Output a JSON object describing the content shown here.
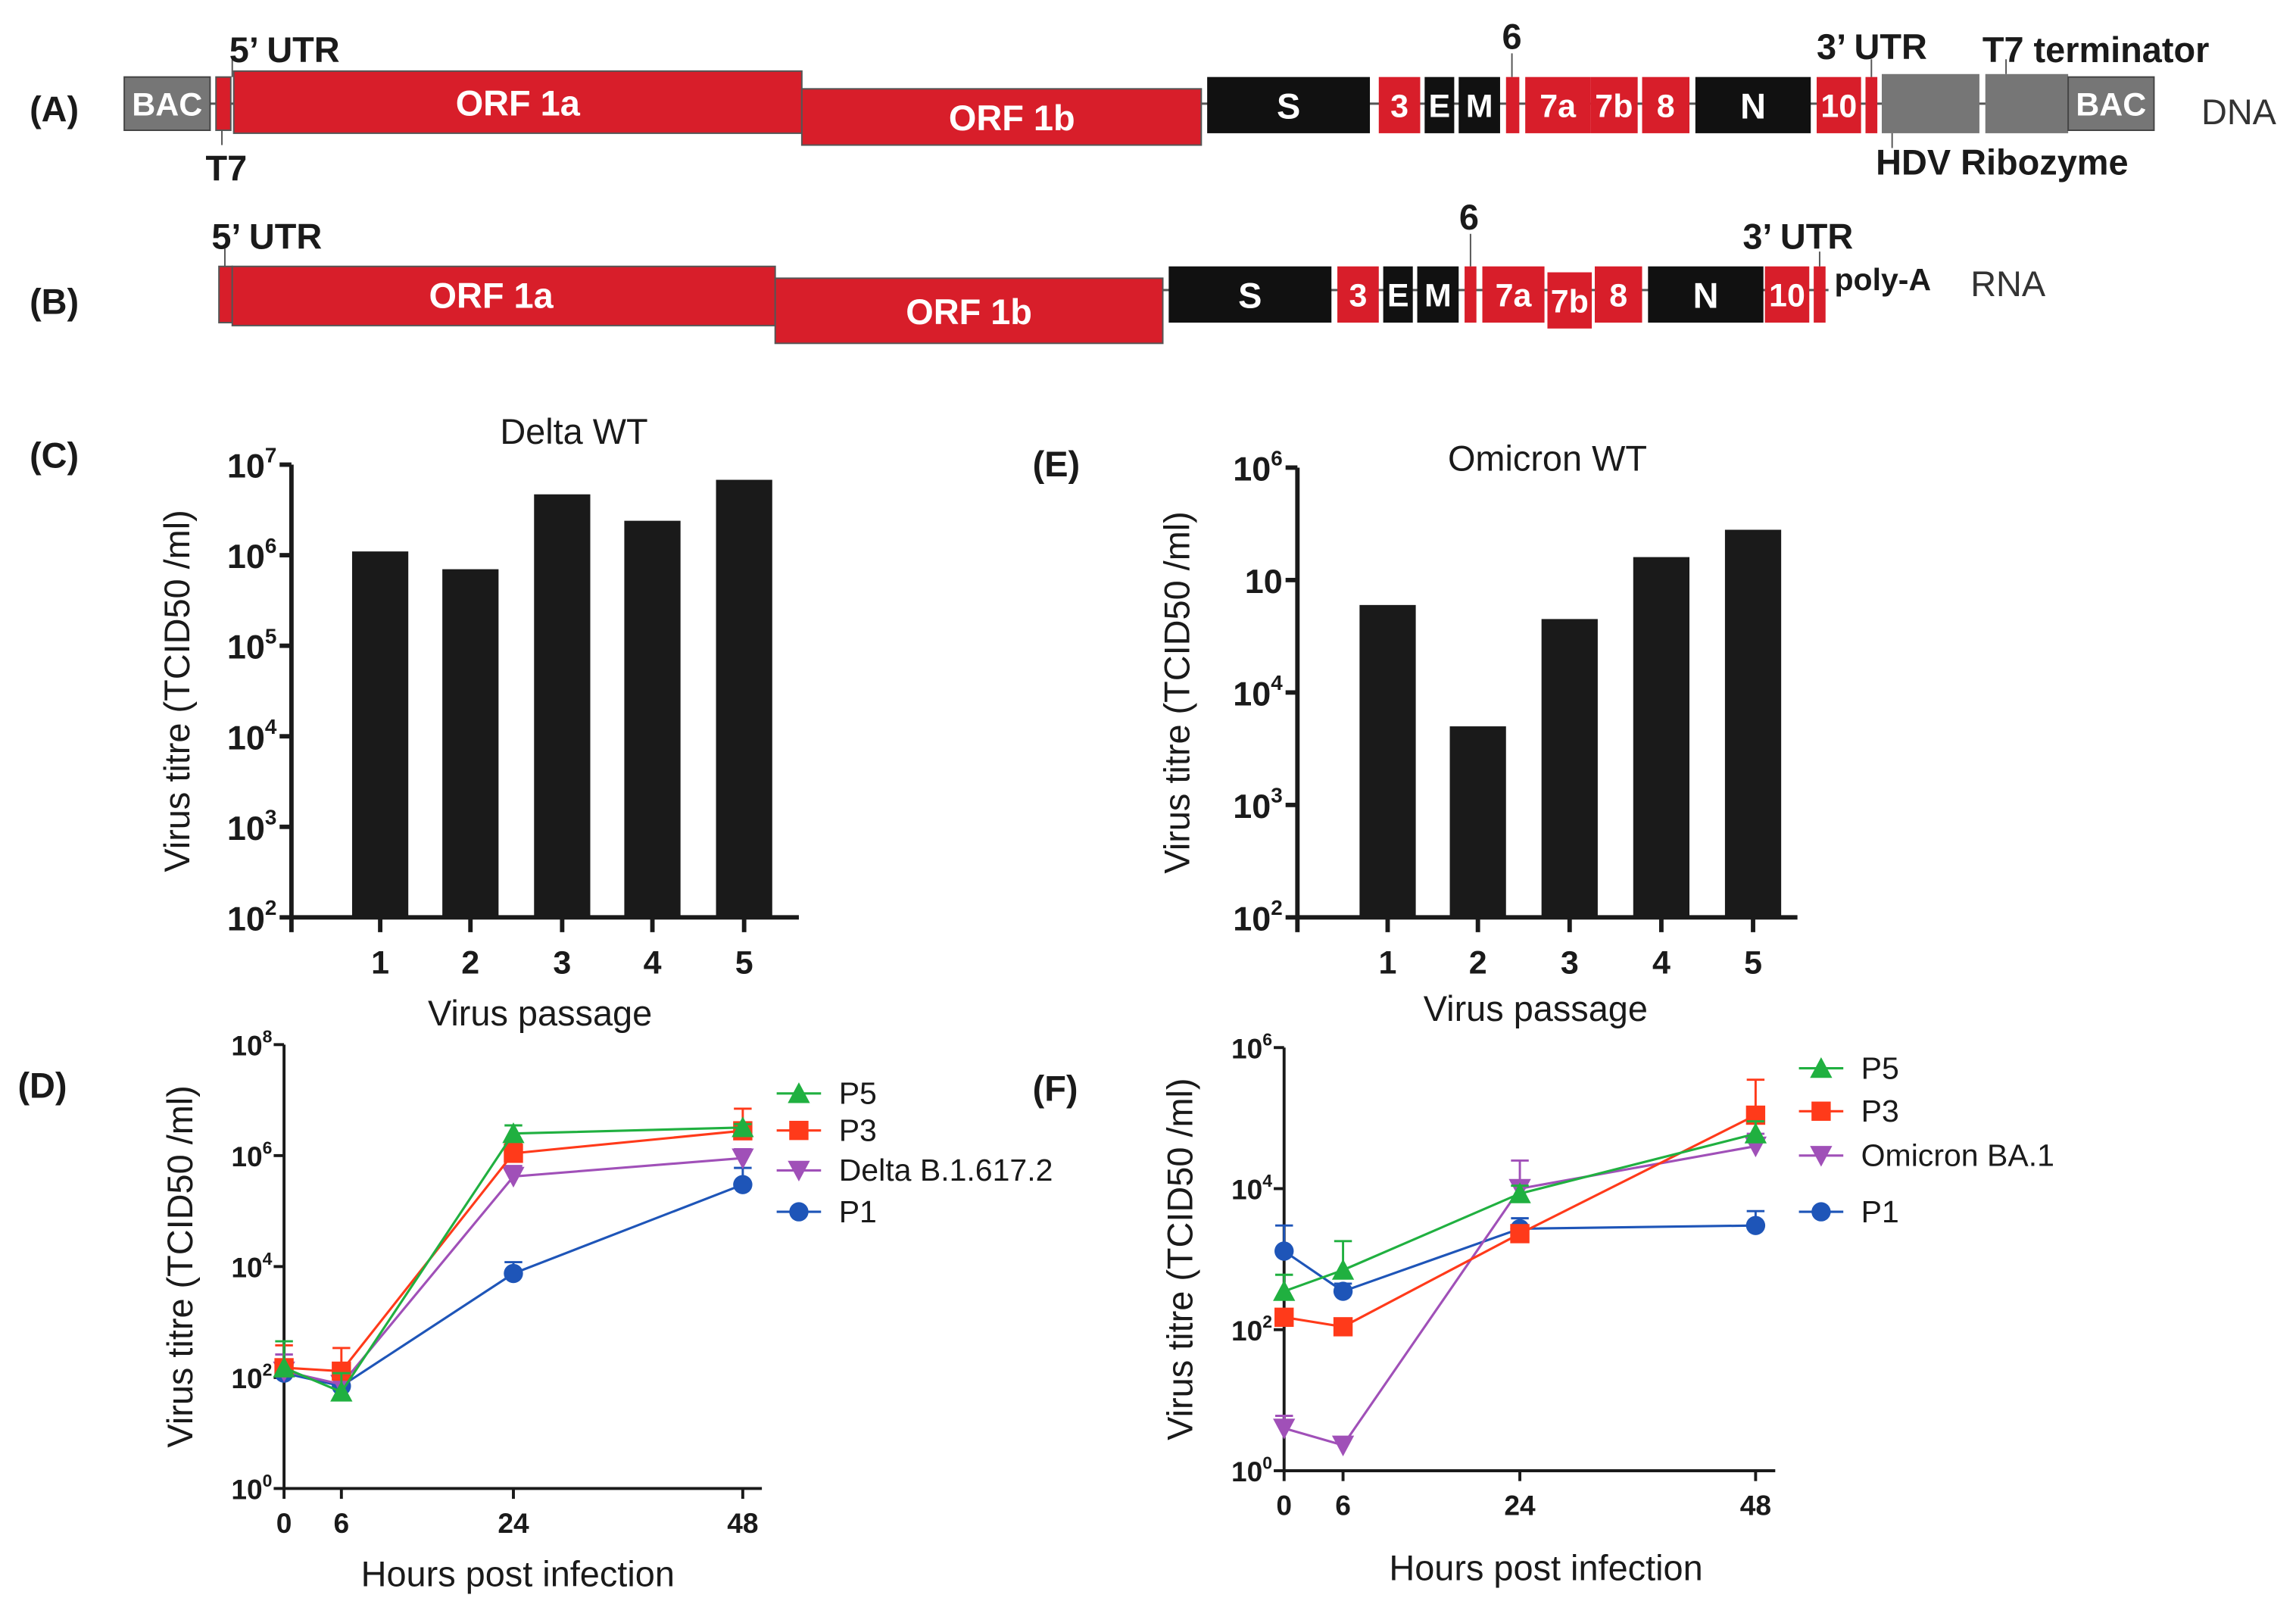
{
  "genome_maps": [
    {
      "panel": "(A)",
      "kind": "DNA",
      "segments": [
        {
          "label": "BAC",
          "color": "gray"
        },
        {
          "label": "",
          "color": "red"
        },
        {
          "label": "ORF 1a",
          "color": "red"
        },
        {
          "label": "ORF 1b",
          "color": "red"
        },
        {
          "label": "S",
          "color": "black"
        },
        {
          "label": "3",
          "color": "red"
        },
        {
          "label": "E",
          "color": "black"
        },
        {
          "label": "M",
          "color": "black"
        },
        {
          "label": "",
          "color": "red"
        },
        {
          "label": "7a",
          "color": "red"
        },
        {
          "label": "7b",
          "color": "red"
        },
        {
          "label": "8",
          "color": "red"
        },
        {
          "label": "N",
          "color": "black"
        },
        {
          "label": "10",
          "color": "red"
        },
        {
          "label": "",
          "color": "red"
        },
        {
          "label": "",
          "color": "gray"
        },
        {
          "label": "",
          "color": "gray"
        },
        {
          "label": "BAC",
          "color": "gray"
        }
      ],
      "annotations": [
        "5’ UTR",
        "T7",
        "6",
        "3’ UTR",
        "T7 terminator",
        "HDV Ribozyme"
      ]
    },
    {
      "panel": "(B)",
      "kind": "RNA",
      "segments": [
        {
          "label": "",
          "color": "red"
        },
        {
          "label": "ORF 1a",
          "color": "red"
        },
        {
          "label": "ORF 1b",
          "color": "red"
        },
        {
          "label": "S",
          "color": "black"
        },
        {
          "label": "3",
          "color": "red"
        },
        {
          "label": "E",
          "color": "black"
        },
        {
          "label": "M",
          "color": "black"
        },
        {
          "label": "",
          "color": "red"
        },
        {
          "label": "7a",
          "color": "red"
        },
        {
          "label": "7b",
          "color": "red"
        },
        {
          "label": "8",
          "color": "red"
        },
        {
          "label": "N",
          "color": "black"
        },
        {
          "label": "10",
          "color": "red"
        },
        {
          "label": "",
          "color": "red"
        }
      ],
      "annotations": [
        "5’ UTR",
        "6",
        "3’ UTR",
        "poly-A"
      ]
    }
  ],
  "chart_data": [
    {
      "panel": "(C)",
      "type": "bar",
      "title": "Delta WT",
      "xlabel": "Virus passage",
      "ylabel": "Virus titre (TCID50 /ml)",
      "yscale": "log",
      "ylim": [
        100,
        10000000
      ],
      "yticks": [
        {
          "value": 100,
          "base": "10",
          "exp": "2"
        },
        {
          "value": 1000,
          "base": "10",
          "exp": "3"
        },
        {
          "value": 10000,
          "base": "10",
          "exp": "4"
        },
        {
          "value": 100000,
          "base": "10",
          "exp": "5"
        },
        {
          "value": 1000000,
          "base": "10",
          "exp": "6"
        },
        {
          "value": 10000000,
          "base": "10",
          "exp": "7"
        }
      ],
      "categories": [
        "1",
        "2",
        "3",
        "4",
        "5"
      ],
      "values": [
        1100000,
        700000,
        4700000,
        2400000,
        6800000
      ],
      "bar_color": "#1a1a1a"
    },
    {
      "panel": "(E)",
      "type": "bar",
      "title": "Omicron WT",
      "xlabel": "Virus passage",
      "ylabel": "Virus titre (TCID50 /ml)",
      "yscale": "log",
      "ylim": [
        100,
        1000000
      ],
      "yticks": [
        {
          "value": 100,
          "base": "10",
          "exp": "2"
        },
        {
          "value": 1000,
          "base": "10",
          "exp": "3"
        },
        {
          "value": 10000,
          "base": "10",
          "exp": "4"
        },
        {
          "value": 100000,
          "base": "10",
          "exp": ""
        },
        {
          "value": 1000000,
          "base": "10",
          "exp": "6"
        }
      ],
      "categories": [
        "1",
        "2",
        "3",
        "4",
        "5"
      ],
      "values": [
        60000,
        5000,
        45000,
        160000,
        280000
      ],
      "bar_color": "#1a1a1a"
    },
    {
      "panel": "(D)",
      "type": "line",
      "xlabel": "Hours post infection",
      "ylabel": "Virus titre (TCID50 /ml)",
      "yscale": "log",
      "ylim": [
        1,
        100000000
      ],
      "xlim": [
        0,
        50
      ],
      "x": [
        0,
        6,
        24,
        48
      ],
      "xticks": [
        "0",
        "6",
        "24",
        "48"
      ],
      "yticks": [
        {
          "value": 1,
          "base": "10",
          "exp": "0"
        },
        {
          "value": 100,
          "base": "10",
          "exp": "2"
        },
        {
          "value": 10000,
          "base": "10",
          "exp": "4"
        },
        {
          "value": 1000000,
          "base": "10",
          "exp": "6"
        },
        {
          "value": 100000000,
          "base": "10",
          "exp": "8"
        }
      ],
      "series": [
        {
          "name": "P5",
          "color": "#20b040",
          "marker": "triangle-up",
          "values": [
            150,
            55,
            2500000,
            3200000
          ],
          "err_upper": [
            450,
            120,
            3500000,
            3700000
          ]
        },
        {
          "name": "P3",
          "color": "#ff3a1a",
          "marker": "square",
          "values": [
            150,
            130,
            1100000,
            2800000
          ],
          "err_upper": [
            380,
            340,
            1700000,
            7000000
          ]
        },
        {
          "name": "Delta B.1.617.2",
          "color": "#a050b8",
          "marker": "triangle-down",
          "values": [
            130,
            75,
            420000,
            900000
          ],
          "err_upper": [
            260,
            170,
            650000,
            1300000
          ]
        },
        {
          "name": "P1",
          "color": "#1e55b8",
          "marker": "circle",
          "values": [
            120,
            70,
            7500,
            300000
          ],
          "err_upper": [
            200,
            110,
            12000,
            600000
          ]
        }
      ]
    },
    {
      "panel": "(F)",
      "type": "line",
      "xlabel": "Hours post infection",
      "ylabel": "Virus titre (TCID50 /ml)",
      "yscale": "log",
      "ylim": [
        1,
        1000000
      ],
      "xlim": [
        0,
        50
      ],
      "x": [
        0,
        6,
        24,
        48
      ],
      "xticks": [
        "0",
        "6",
        "24",
        "48"
      ],
      "yticks": [
        {
          "value": 1,
          "base": "10",
          "exp": "0"
        },
        {
          "value": 100,
          "base": "10",
          "exp": "2"
        },
        {
          "value": 10000,
          "base": "10",
          "exp": "4"
        },
        {
          "value": 1000000,
          "base": "10",
          "exp": "6"
        }
      ],
      "series": [
        {
          "name": "P5",
          "color": "#20b040",
          "marker": "triangle-up",
          "values": [
            350,
            700,
            8500,
            60000
          ],
          "err_upper": [
            600,
            1800,
            11000,
            90000
          ]
        },
        {
          "name": "P3",
          "color": "#ff3a1a",
          "marker": "square",
          "values": [
            150,
            110,
            2300,
            110000
          ],
          "err_upper": [
            190,
            140,
            2800,
            350000
          ]
        },
        {
          "name": "Omicron BA.1",
          "color": "#a050b8",
          "marker": "triangle-down",
          "values": [
            4,
            2.3,
            10000,
            40000
          ],
          "err_upper": [
            6,
            3,
            25000,
            60000
          ]
        },
        {
          "name": "P1",
          "color": "#1e55b8",
          "marker": "circle",
          "values": [
            1300,
            350,
            2700,
            3000
          ],
          "err_upper": [
            3000,
            450,
            3800,
            4800
          ]
        }
      ]
    }
  ]
}
